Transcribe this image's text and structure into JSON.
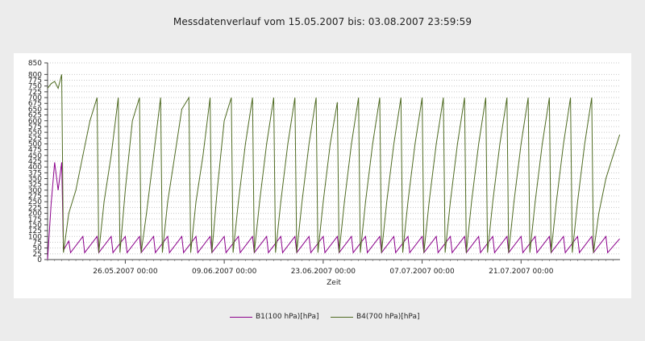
{
  "window": {
    "background": "#ececec"
  },
  "chart_data": {
    "type": "line",
    "title": "Messdatenverlauf vom  15.05.2007  bis: 03.08.2007 23:59:59",
    "xlabel": "Zeit",
    "ylabel": "",
    "x_range": [
      "2007-05-15 00:00",
      "2007-08-03 23:59"
    ],
    "ylim": [
      0,
      850
    ],
    "y_ticks": [
      "0",
      "25",
      "50",
      "75",
      "100",
      "125",
      "150",
      "175",
      "200",
      "225",
      "250",
      "275",
      "300",
      "325",
      "350",
      "375",
      "400",
      "425",
      "450",
      "475",
      "500",
      "525",
      "550",
      "575",
      "600",
      "625",
      "650",
      "675",
      "700",
      "725",
      "750",
      "775",
      "800",
      "850"
    ],
    "y_tick_labels": [
      "0",
      "25",
      "50",
      "75",
      "100",
      "125",
      "150",
      "175",
      "200",
      "225",
      "250",
      "275",
      "300",
      "325",
      "350",
      "375",
      "400",
      "425",
      "450",
      "475",
      "500",
      "525",
      "550",
      "575",
      "600",
      "625",
      "650",
      "675",
      "700",
      "725",
      "750",
      "775",
      "800",
      "850"
    ],
    "x_tick_labels": [
      "26.05.2007 00:00",
      "09.06.2007 00:00",
      "23.06.2007 00:00",
      "07.07.2007 00:00",
      "21.07.2007 00:00"
    ],
    "grid": true,
    "legend": "bottom",
    "series": [
      {
        "name": "B1(100 hPa)[hPa]",
        "color": "#8b008b",
        "summary": "sawtooth between ~25 and ~100 hPa, cycle ~1-2 days; initial spike to ~420 on 15.05.-16.05.2007",
        "points": [
          [
            "2007-05-15 00:00",
            0
          ],
          [
            "2007-05-15 12:00",
            240
          ],
          [
            "2007-05-16 00:00",
            420
          ],
          [
            "2007-05-16 12:00",
            300
          ],
          [
            "2007-05-17 00:00",
            420
          ],
          [
            "2007-05-17 06:00",
            40
          ],
          [
            "2007-05-18 00:00",
            80
          ],
          [
            "2007-05-18 06:00",
            30
          ],
          [
            "2007-05-20 00:00",
            100
          ],
          [
            "2007-05-20 06:00",
            30
          ],
          [
            "2007-05-22 00:00",
            100
          ],
          [
            "2007-05-22 06:00",
            30
          ],
          [
            "2007-05-24 00:00",
            100
          ],
          [
            "2007-05-24 06:00",
            30
          ],
          [
            "2007-05-26 00:00",
            100
          ],
          [
            "2007-05-26 06:00",
            30
          ],
          [
            "2007-05-28 00:00",
            100
          ],
          [
            "2007-05-28 06:00",
            30
          ],
          [
            "2007-05-30 00:00",
            100
          ],
          [
            "2007-05-30 06:00",
            30
          ],
          [
            "2007-06-01 00:00",
            100
          ],
          [
            "2007-06-01 06:00",
            30
          ],
          [
            "2007-06-03 00:00",
            100
          ],
          [
            "2007-06-03 06:00",
            30
          ],
          [
            "2007-06-05 00:00",
            100
          ],
          [
            "2007-06-05 06:00",
            30
          ],
          [
            "2007-06-07 00:00",
            100
          ],
          [
            "2007-06-07 06:00",
            30
          ],
          [
            "2007-06-09 00:00",
            100
          ],
          [
            "2007-06-09 06:00",
            30
          ],
          [
            "2007-06-11 00:00",
            100
          ],
          [
            "2007-06-11 06:00",
            30
          ],
          [
            "2007-06-13 00:00",
            100
          ],
          [
            "2007-06-13 06:00",
            30
          ],
          [
            "2007-06-15 00:00",
            100
          ],
          [
            "2007-06-15 06:00",
            30
          ],
          [
            "2007-06-17 00:00",
            100
          ],
          [
            "2007-06-17 06:00",
            30
          ],
          [
            "2007-06-19 00:00",
            100
          ],
          [
            "2007-06-19 06:00",
            30
          ],
          [
            "2007-06-21 00:00",
            100
          ],
          [
            "2007-06-21 06:00",
            30
          ],
          [
            "2007-06-23 00:00",
            100
          ],
          [
            "2007-06-23 06:00",
            30
          ],
          [
            "2007-06-25 00:00",
            100
          ],
          [
            "2007-06-25 06:00",
            30
          ],
          [
            "2007-06-27 00:00",
            100
          ],
          [
            "2007-06-27 06:00",
            30
          ],
          [
            "2007-06-29 00:00",
            100
          ],
          [
            "2007-06-29 06:00",
            30
          ],
          [
            "2007-07-01 00:00",
            100
          ],
          [
            "2007-07-01 06:00",
            30
          ],
          [
            "2007-07-03 00:00",
            100
          ],
          [
            "2007-07-03 06:00",
            30
          ],
          [
            "2007-07-05 00:00",
            100
          ],
          [
            "2007-07-05 06:00",
            30
          ],
          [
            "2007-07-07 00:00",
            100
          ],
          [
            "2007-07-07 06:00",
            30
          ],
          [
            "2007-07-09 00:00",
            100
          ],
          [
            "2007-07-09 06:00",
            30
          ],
          [
            "2007-07-11 00:00",
            100
          ],
          [
            "2007-07-11 06:00",
            30
          ],
          [
            "2007-07-13 00:00",
            100
          ],
          [
            "2007-07-13 06:00",
            30
          ],
          [
            "2007-07-15 00:00",
            100
          ],
          [
            "2007-07-15 06:00",
            30
          ],
          [
            "2007-07-17 00:00",
            100
          ],
          [
            "2007-07-17 06:00",
            30
          ],
          [
            "2007-07-19 00:00",
            100
          ],
          [
            "2007-07-19 06:00",
            30
          ],
          [
            "2007-07-21 00:00",
            100
          ],
          [
            "2007-07-21 06:00",
            30
          ],
          [
            "2007-07-23 00:00",
            100
          ],
          [
            "2007-07-23 06:00",
            30
          ],
          [
            "2007-07-25 00:00",
            100
          ],
          [
            "2007-07-25 06:00",
            30
          ],
          [
            "2007-07-27 00:00",
            100
          ],
          [
            "2007-07-27 06:00",
            30
          ],
          [
            "2007-07-29 00:00",
            100
          ],
          [
            "2007-07-29 06:00",
            30
          ],
          [
            "2007-07-31 00:00",
            100
          ],
          [
            "2007-07-31 06:00",
            30
          ],
          [
            "2007-08-02 00:00",
            100
          ],
          [
            "2007-08-02 06:00",
            30
          ],
          [
            "2007-08-03 23:00",
            90
          ]
        ]
      },
      {
        "name": "B4(700 hPa)[hPa]",
        "color": "#4f6b22",
        "summary": "sawtooth: fast rise from ~30-80 to ~700 hPa over ~3 days, then sharp drop; starts at ~750-800 on 15.05.2007",
        "points": [
          [
            "2007-05-15 00:00",
            740
          ],
          [
            "2007-05-15 12:00",
            760
          ],
          [
            "2007-05-16 00:00",
            770
          ],
          [
            "2007-05-16 12:00",
            740
          ],
          [
            "2007-05-17 00:00",
            800
          ],
          [
            "2007-05-17 06:00",
            30
          ],
          [
            "2007-05-18 00:00",
            200
          ],
          [
            "2007-05-19 00:00",
            300
          ],
          [
            "2007-05-20 00:00",
            450
          ],
          [
            "2007-05-21 00:00",
            600
          ],
          [
            "2007-05-22 00:00",
            700
          ],
          [
            "2007-05-22 06:00",
            30
          ],
          [
            "2007-05-23 00:00",
            250
          ],
          [
            "2007-05-24 00:00",
            450
          ],
          [
            "2007-05-25 00:00",
            700
          ],
          [
            "2007-05-25 06:00",
            30
          ],
          [
            "2007-05-26 00:00",
            300
          ],
          [
            "2007-05-27 00:00",
            600
          ],
          [
            "2007-05-28 00:00",
            700
          ],
          [
            "2007-05-28 06:00",
            30
          ],
          [
            "2007-05-29 00:00",
            200
          ],
          [
            "2007-05-30 00:00",
            450
          ],
          [
            "2007-05-31 00:00",
            700
          ],
          [
            "2007-05-31 06:00",
            30
          ],
          [
            "2007-06-01 00:00",
            250
          ],
          [
            "2007-06-02 00:00",
            450
          ],
          [
            "2007-06-03 00:00",
            650
          ],
          [
            "2007-06-04 00:00",
            700
          ],
          [
            "2007-06-04 06:00",
            30
          ],
          [
            "2007-06-05 00:00",
            250
          ],
          [
            "2007-06-06 00:00",
            450
          ],
          [
            "2007-06-07 00:00",
            700
          ],
          [
            "2007-06-07 06:00",
            30
          ],
          [
            "2007-06-08 00:00",
            300
          ],
          [
            "2007-06-09 00:00",
            600
          ],
          [
            "2007-06-10 00:00",
            700
          ],
          [
            "2007-06-10 06:00",
            30
          ],
          [
            "2007-06-11 00:00",
            250
          ],
          [
            "2007-06-12 00:00",
            500
          ],
          [
            "2007-06-13 00:00",
            700
          ],
          [
            "2007-06-13 06:00",
            30
          ],
          [
            "2007-06-14 00:00",
            250
          ],
          [
            "2007-06-15 00:00",
            500
          ],
          [
            "2007-06-16 00:00",
            700
          ],
          [
            "2007-06-16 06:00",
            30
          ],
          [
            "2007-06-17 00:00",
            250
          ],
          [
            "2007-06-18 00:00",
            500
          ],
          [
            "2007-06-19 00:00",
            700
          ],
          [
            "2007-06-19 06:00",
            30
          ],
          [
            "2007-06-20 00:00",
            250
          ],
          [
            "2007-06-21 00:00",
            500
          ],
          [
            "2007-06-22 00:00",
            700
          ],
          [
            "2007-06-22 06:00",
            30
          ],
          [
            "2007-06-23 00:00",
            250
          ],
          [
            "2007-06-24 00:00",
            500
          ],
          [
            "2007-06-25 00:00",
            680
          ],
          [
            "2007-06-25 06:00",
            30
          ],
          [
            "2007-06-26 00:00",
            250
          ],
          [
            "2007-06-27 00:00",
            500
          ],
          [
            "2007-06-28 00:00",
            700
          ],
          [
            "2007-06-28 06:00",
            30
          ],
          [
            "2007-06-29 00:00",
            250
          ],
          [
            "2007-06-30 00:00",
            500
          ],
          [
            "2007-07-01 00:00",
            700
          ],
          [
            "2007-07-01 06:00",
            30
          ],
          [
            "2007-07-02 00:00",
            250
          ],
          [
            "2007-07-03 00:00",
            500
          ],
          [
            "2007-07-04 00:00",
            700
          ],
          [
            "2007-07-04 06:00",
            30
          ],
          [
            "2007-07-05 00:00",
            250
          ],
          [
            "2007-07-06 00:00",
            500
          ],
          [
            "2007-07-07 00:00",
            700
          ],
          [
            "2007-07-07 06:00",
            30
          ],
          [
            "2007-07-08 00:00",
            250
          ],
          [
            "2007-07-09 00:00",
            500
          ],
          [
            "2007-07-10 00:00",
            700
          ],
          [
            "2007-07-10 06:00",
            30
          ],
          [
            "2007-07-11 00:00",
            250
          ],
          [
            "2007-07-12 00:00",
            500
          ],
          [
            "2007-07-13 00:00",
            700
          ],
          [
            "2007-07-13 06:00",
            30
          ],
          [
            "2007-07-14 00:00",
            250
          ],
          [
            "2007-07-15 00:00",
            500
          ],
          [
            "2007-07-16 00:00",
            700
          ],
          [
            "2007-07-16 06:00",
            30
          ],
          [
            "2007-07-17 00:00",
            250
          ],
          [
            "2007-07-18 00:00",
            500
          ],
          [
            "2007-07-19 00:00",
            700
          ],
          [
            "2007-07-19 06:00",
            30
          ],
          [
            "2007-07-20 00:00",
            250
          ],
          [
            "2007-07-21 00:00",
            500
          ],
          [
            "2007-07-22 00:00",
            700
          ],
          [
            "2007-07-22 06:00",
            30
          ],
          [
            "2007-07-23 00:00",
            250
          ],
          [
            "2007-07-24 00:00",
            500
          ],
          [
            "2007-07-25 00:00",
            700
          ],
          [
            "2007-07-25 06:00",
            30
          ],
          [
            "2007-07-26 00:00",
            250
          ],
          [
            "2007-07-27 00:00",
            500
          ],
          [
            "2007-07-28 00:00",
            700
          ],
          [
            "2007-07-28 06:00",
            30
          ],
          [
            "2007-07-29 00:00",
            250
          ],
          [
            "2007-07-30 00:00",
            500
          ],
          [
            "2007-07-31 00:00",
            700
          ],
          [
            "2007-07-31 06:00",
            30
          ],
          [
            "2007-08-01 00:00",
            200
          ],
          [
            "2007-08-02 00:00",
            350
          ],
          [
            "2007-08-03 23:00",
            540
          ]
        ]
      }
    ]
  }
}
